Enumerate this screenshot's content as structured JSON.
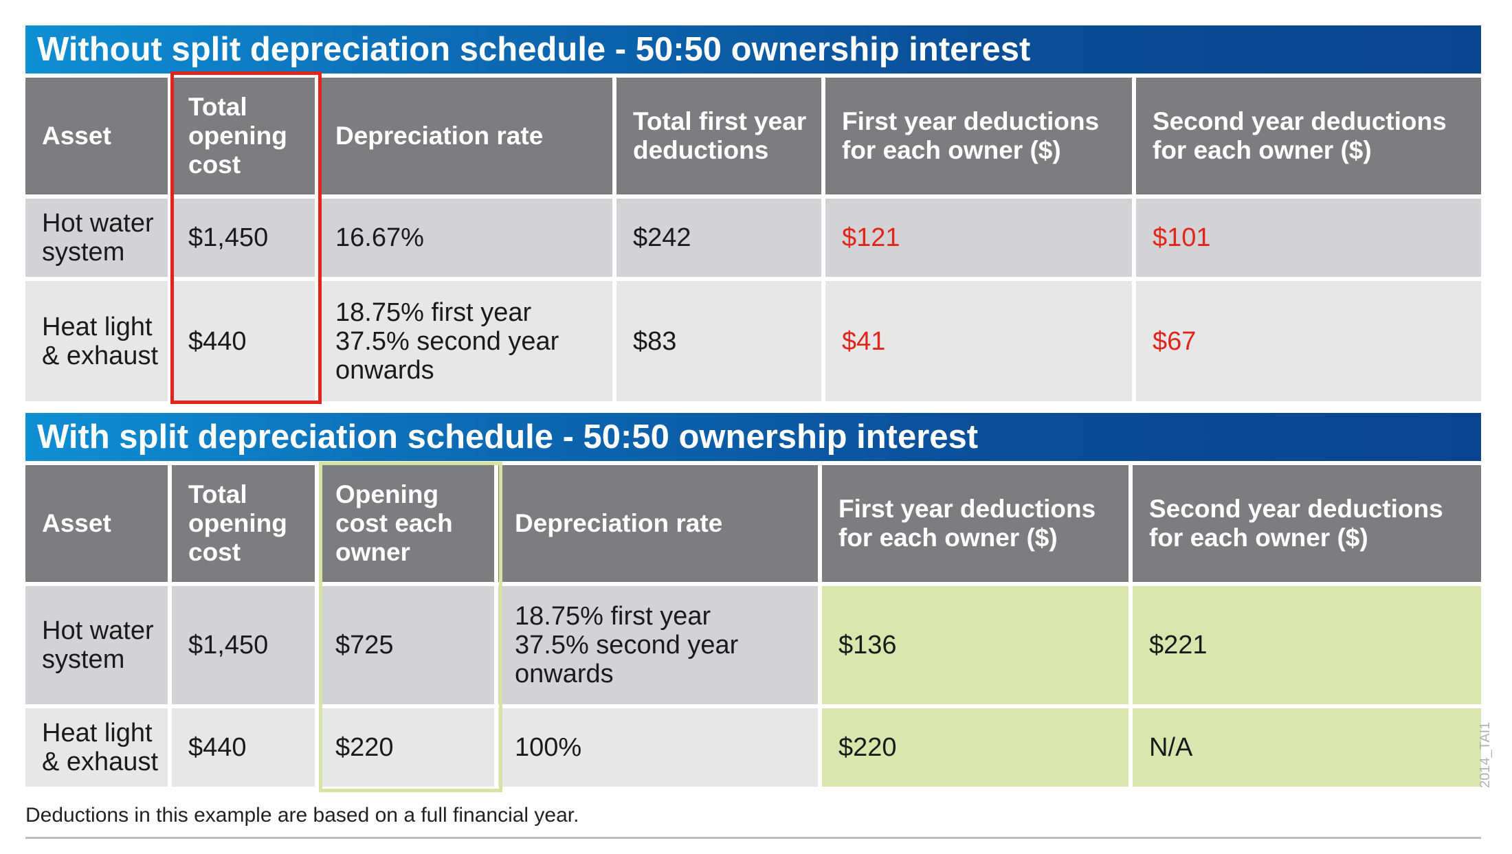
{
  "table1": {
    "title": "Without split depreciation schedule - 50:50 ownership interest",
    "headers": [
      "Asset",
      "Total\nopening\ncost",
      "Depreciation rate",
      "Total first year\ndeductions",
      "First year deductions\nfor each owner ($)",
      "Second year deductions\nfor each owner ($)"
    ],
    "rows": [
      [
        "Hot water\nsystem",
        "$1,450",
        "16.67%",
        "$242",
        "$121",
        "$101"
      ],
      [
        "Heat light\n& exhaust",
        "$440",
        "18.75% first year\n37.5% second year\nonwards",
        "$83",
        "$41",
        "$67"
      ]
    ]
  },
  "table2": {
    "title": "With split depreciation schedule - 50:50 ownership interest",
    "headers": [
      "Asset",
      "Total\nopening\ncost",
      "Opening\ncost each\nowner",
      "Depreciation rate",
      "First year deductions\nfor each owner ($)",
      "Second year deductions\nfor each owner ($)"
    ],
    "rows": [
      [
        "Hot water\nsystem",
        "$1,450",
        "$725",
        "18.75% first year\n37.5% second year\nonwards",
        "$136",
        "$221"
      ],
      [
        "Heat light\n& exhaust",
        "$440",
        "$220",
        "100%",
        "$220",
        "N/A"
      ]
    ]
  },
  "footnote": "Deductions in this example are based on a full financial year.",
  "doc_code": "2014_TAI1",
  "colors": {
    "banner": "#0b4f99",
    "header_bg": "#7d7d80",
    "row_light": "#d3d3d5",
    "row_lighter": "#e7e7e8",
    "highlight_red": "#e0261c",
    "highlight_green": "#d9e6ad",
    "frame_green": "#d6e3a4"
  }
}
